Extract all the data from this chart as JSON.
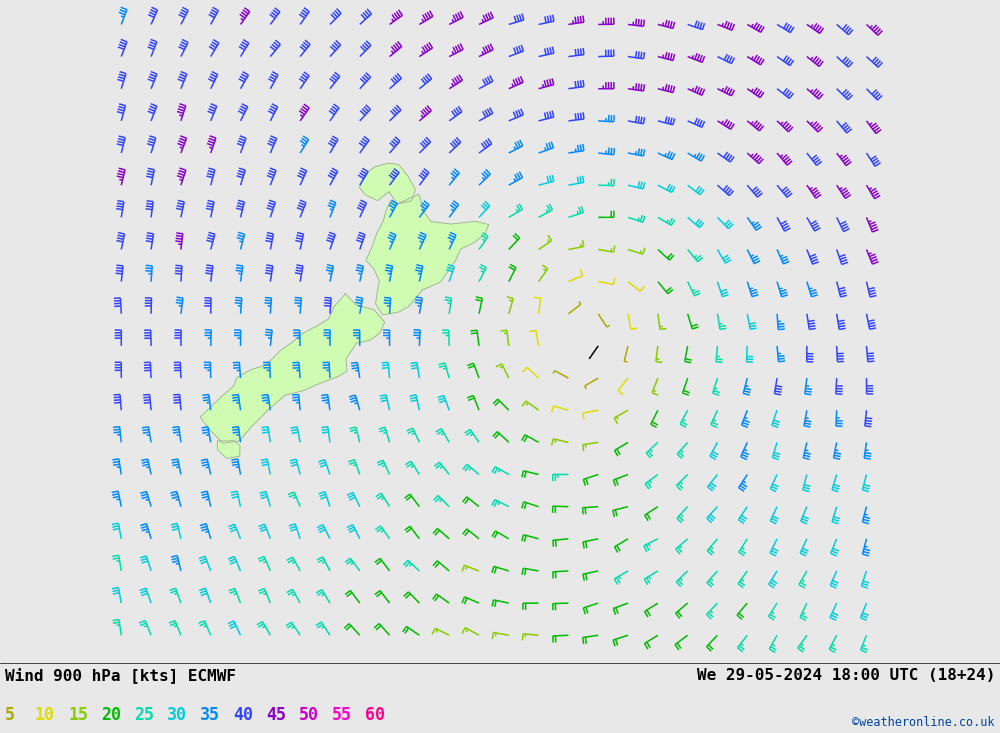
{
  "title_left": "Wind 900 hPa [kts] ECMWF",
  "title_right": "We 29-05-2024 18:00 UTC (18+24)",
  "credit": "©weatheronline.co.uk",
  "background_color": "#e8e8e8",
  "land_color": "#ccffaa",
  "land_border_color": "#999999",
  "legend_values": [
    5,
    10,
    15,
    20,
    25,
    30,
    35,
    40,
    45,
    50,
    55,
    60
  ],
  "legend_colors": [
    "#aaaa00",
    "#dddd00",
    "#88cc00",
    "#00bb00",
    "#00ddaa",
    "#00ccdd",
    "#0088ff",
    "#3344ff",
    "#8800cc",
    "#cc00cc",
    "#ff00cc",
    "#ff0088"
  ],
  "figsize": [
    10.0,
    7.33
  ],
  "dpi": 100,
  "map_xlim": [
    163.0,
    195.0
  ],
  "map_ylim": [
    -55.5,
    -28.5
  ]
}
